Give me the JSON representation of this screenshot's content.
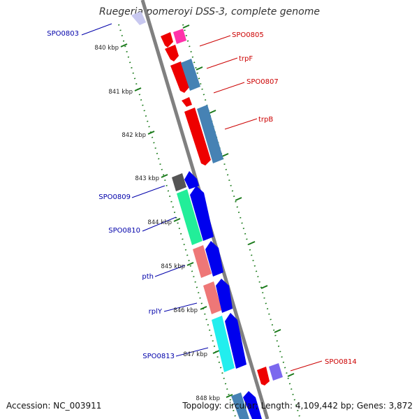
{
  "title": "Ruegeria pomeroyi DSS-3, complete genome",
  "footer": {
    "accession": "Accession: NC_003911",
    "summary": "Topology: circular; Length: 4,109,442 bp; Genes: 3,872"
  },
  "colors": {
    "backbone": "#808080",
    "tick": "#1a7a1a",
    "label_forward": "#cc0000",
    "label_reverse": "#0000aa"
  },
  "scale": [
    {
      "label": "840 kbp"
    },
    {
      "label": "841 kbp"
    },
    {
      "label": "842 kbp"
    },
    {
      "label": "843 kbp"
    },
    {
      "label": "844 kbp"
    },
    {
      "label": "845 kbp"
    },
    {
      "label": "846 kbp"
    },
    {
      "label": "847 kbp"
    },
    {
      "label": "848 kbp"
    }
  ],
  "gene_labels": [
    {
      "text": "SPO0803",
      "strand": "reverse"
    },
    {
      "text": "SPO0805",
      "strand": "forward"
    },
    {
      "text": "trpF",
      "strand": "forward"
    },
    {
      "text": "SPO0807",
      "strand": "forward"
    },
    {
      "text": "trpB",
      "strand": "forward"
    },
    {
      "text": "SPO0809",
      "strand": "reverse"
    },
    {
      "text": "SPO0810",
      "strand": "reverse"
    },
    {
      "text": "pth",
      "strand": "reverse"
    },
    {
      "text": "rplY",
      "strand": "reverse"
    },
    {
      "text": "SPO0813",
      "strand": "reverse"
    },
    {
      "text": "SPO0814",
      "strand": "forward"
    }
  ]
}
